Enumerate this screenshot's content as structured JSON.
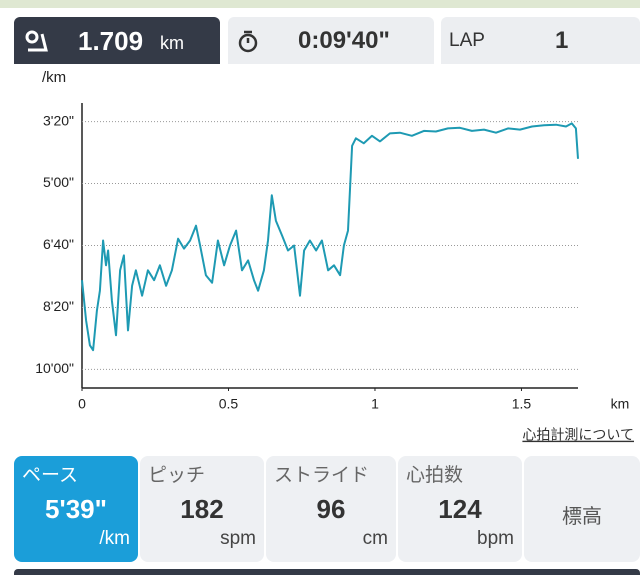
{
  "tabs": {
    "distance": {
      "value": "1.709",
      "unit": "km"
    },
    "time": {
      "value": "0:09'40\""
    },
    "lap": {
      "label": "LAP",
      "value": "1"
    }
  },
  "chart_data": {
    "type": "line",
    "y_label": "/km",
    "x_label": "km",
    "xlim": [
      0,
      1.693
    ],
    "xticks": [
      0,
      0.5,
      1,
      1.5
    ],
    "ylim": [
      630,
      170
    ],
    "yticks": [
      {
        "value": 200,
        "label": "3'20\""
      },
      {
        "value": 300,
        "label": "5'00\""
      },
      {
        "value": 400,
        "label": "6'40\""
      },
      {
        "value": 500,
        "label": "8'20\""
      },
      {
        "value": 600,
        "label": "10'00\""
      }
    ],
    "grid": true,
    "x": [
      0,
      0.014,
      0.027,
      0.038,
      0.051,
      0.061,
      0.072,
      0.082,
      0.089,
      0.102,
      0.116,
      0.13,
      0.143,
      0.157,
      0.171,
      0.184,
      0.205,
      0.225,
      0.246,
      0.266,
      0.287,
      0.307,
      0.328,
      0.348,
      0.369,
      0.389,
      0.403,
      0.423,
      0.444,
      0.464,
      0.485,
      0.505,
      0.526,
      0.546,
      0.567,
      0.587,
      0.601,
      0.621,
      0.635,
      0.648,
      0.662,
      0.683,
      0.703,
      0.724,
      0.744,
      0.758,
      0.778,
      0.799,
      0.819,
      0.84,
      0.86,
      0.881,
      0.894,
      0.908,
      0.922,
      0.935,
      0.962,
      0.99,
      1.017,
      1.051,
      1.085,
      1.126,
      1.167,
      1.208,
      1.249,
      1.29,
      1.331,
      1.372,
      1.413,
      1.454,
      1.495,
      1.536,
      1.577,
      1.618,
      1.652,
      1.672,
      1.686,
      1.693
    ],
    "series": [
      {
        "color": "#1e9ab3",
        "values": [
          456,
          521,
          561,
          569,
          505,
          473,
          392,
          432,
          408,
          489,
          545,
          440,
          416,
          537,
          465,
          440,
          481,
          440,
          456,
          432,
          465,
          440,
          389,
          405,
          392,
          368,
          400,
          448,
          460,
          392,
          432,
          400,
          376,
          440,
          424,
          456,
          473,
          440,
          392,
          319,
          360,
          384,
          408,
          400,
          481,
          408,
          392,
          408,
          392,
          440,
          432,
          448,
          400,
          376,
          239,
          227,
          235,
          223,
          232,
          219,
          218,
          223,
          215,
          216,
          211,
          210,
          215,
          213,
          218,
          211,
          213,
          208,
          206,
          205,
          208,
          203,
          211,
          260
        ]
      }
    ]
  },
  "link": "心拍計測について",
  "cards": [
    {
      "label": "ペース",
      "value": "5'39\"",
      "unit": "/km"
    },
    {
      "label": "ピッチ",
      "value": "182",
      "unit": "spm"
    },
    {
      "label": "ストライド",
      "value": "96",
      "unit": "cm"
    },
    {
      "label": "心拍数",
      "value": "124",
      "unit": "bpm"
    },
    {
      "label": "標高"
    }
  ]
}
